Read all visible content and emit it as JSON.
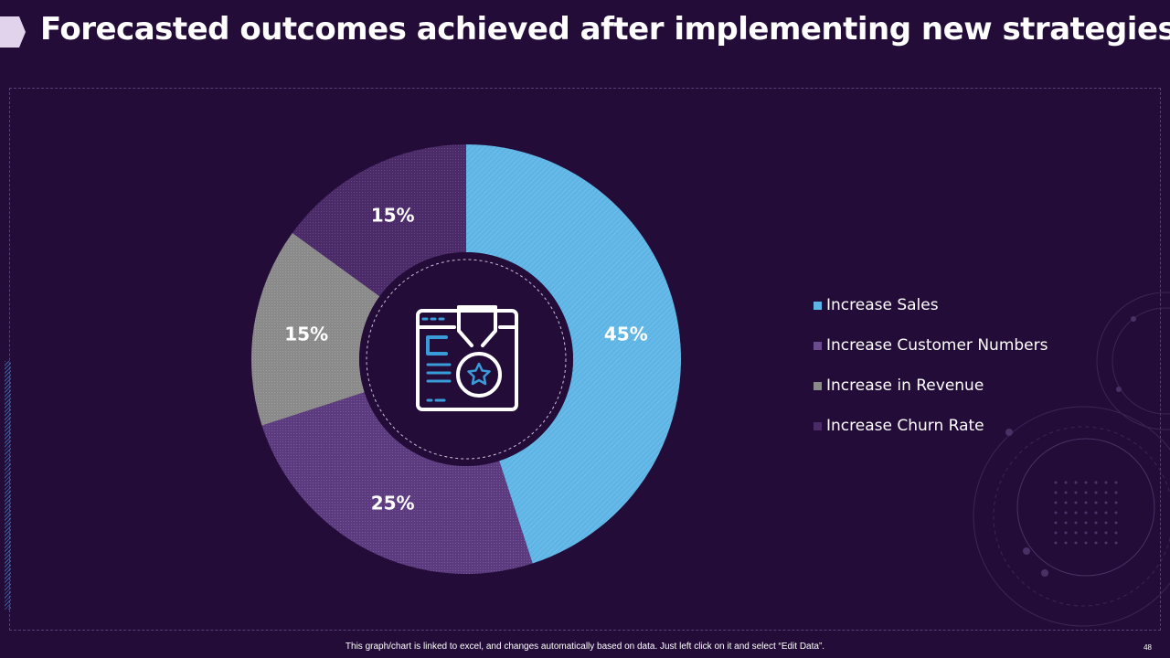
{
  "slide": {
    "title": "Forecasted outcomes achieved after implementing new strategies",
    "footer_note": "This graph/chart is linked to excel, and changes automatically based on data. Just left click on it and select “Edit Data”.",
    "page_number": "48"
  },
  "chart_data": {
    "type": "pie",
    "variant": "donut",
    "categories": [
      "Increase Sales",
      "Increase Customer Numbers",
      "Increase in Revenue",
      "Increase Churn Rate"
    ],
    "values": [
      45,
      25,
      15,
      15
    ],
    "labels": [
      "45%",
      "25%",
      "15%",
      "15%"
    ],
    "colors": [
      "#5eb4e4",
      "#5b3a7d",
      "#8a8a8a",
      "#4b2a68"
    ],
    "legend_position": "right",
    "center_icon": "medal-certificate-icon"
  },
  "legend": {
    "items": [
      {
        "label": "Increase Sales",
        "color": "#5eb4e4"
      },
      {
        "label": "Increase Customer Numbers",
        "color": "#6b4a8d"
      },
      {
        "label": "Increase in Revenue",
        "color": "#8a8a8a"
      },
      {
        "label": "Increase Churn Rate",
        "color": "#4b2a68"
      }
    ]
  },
  "colors": {
    "background": "#230d38",
    "icon_accent": "#3a9bd9"
  }
}
